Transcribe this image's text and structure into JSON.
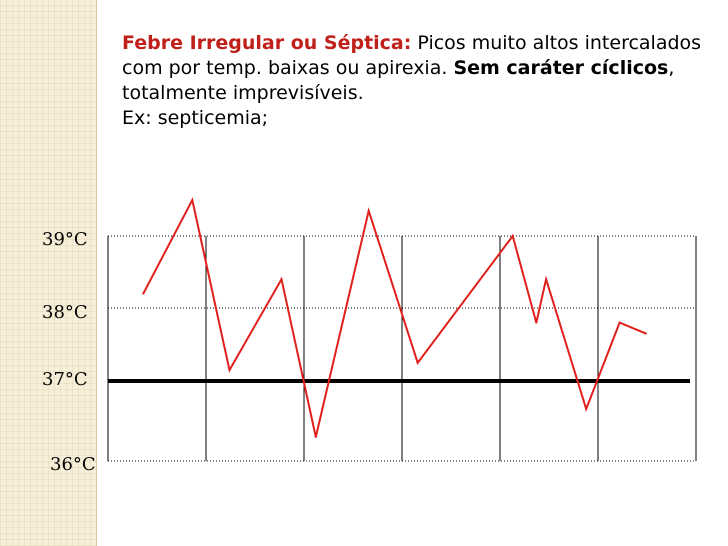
{
  "text": {
    "title": "Febre Irregular ou Séptica:",
    "desc1": " Picos muito altos intercalados com por temp. baixas ou apirexia. ",
    "bold2": "Sem caráter cíclicos",
    "desc2": ", totalmente imprevisíveis.",
    "example": "Ex: septicemia;"
  },
  "colors": {
    "accent": "#c0201a",
    "line": "#e0201c",
    "baseline": "#000000"
  },
  "chart_data": {
    "type": "line",
    "title": "",
    "xlabel": "",
    "ylabel": "",
    "ylim": [
      36,
      39.3
    ],
    "y_ticks": [
      {
        "label": "39°C",
        "value": 39
      },
      {
        "label": "38°C",
        "value": 38
      },
      {
        "label": "37°C",
        "value": 37
      },
      {
        "label": "36°C",
        "value": 36
      }
    ],
    "reference_line": 37,
    "x_divisions": 6,
    "x_range": [
      0,
      6
    ],
    "series": [
      {
        "x": [
          0.36,
          0.86,
          1.24,
          1.77,
          2.12,
          2.66,
          3.16,
          4.13,
          4.37,
          4.47,
          4.88,
          5.22,
          5.49
        ],
        "values": [
          38.2,
          39.5,
          37.15,
          38.4,
          36.3,
          39.35,
          37.25,
          39.0,
          37.8,
          38.4,
          36.65,
          37.8,
          37.65
        ]
      }
    ]
  }
}
